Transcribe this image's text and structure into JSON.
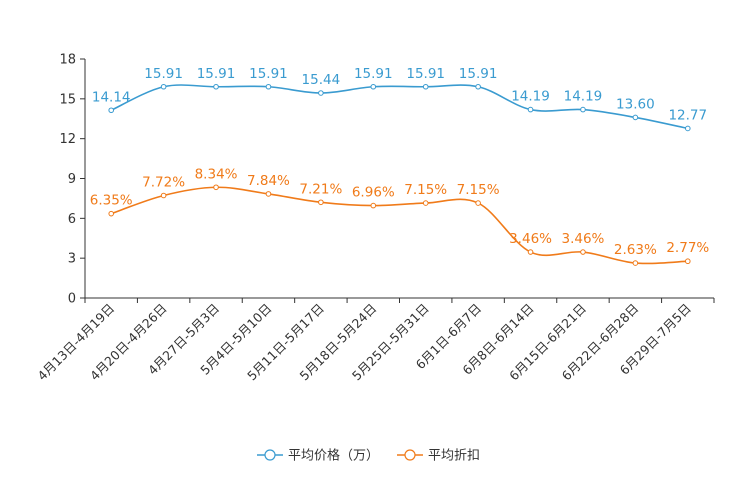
{
  "chart_data": {
    "type": "line",
    "categories": [
      "4月13日-4月19日",
      "4月20日-4月26日",
      "4月27日-5月3日",
      "5月4日-5月10日",
      "5月11日-5月17日",
      "5月18日-5月24日",
      "5月25日-5月31日",
      "6月1日-6月7日",
      "6月8日-6月14日",
      "6月15日-6月21日",
      "6月22日-6月28日",
      "6月29日-7月5日"
    ],
    "ylim": [
      0,
      18
    ],
    "yticks": [
      0,
      3,
      6,
      9,
      12,
      15,
      18
    ],
    "series": [
      {
        "name": "平均价格（万）",
        "color": "#3a9bd0",
        "values": [
          14.14,
          15.91,
          15.91,
          15.91,
          15.44,
          15.91,
          15.91,
          15.91,
          14.19,
          14.19,
          13.6,
          12.77
        ],
        "labels": [
          "14.14",
          "15.91",
          "15.91",
          "15.91",
          "15.44",
          "15.91",
          "15.91",
          "15.91",
          "14.19",
          "14.19",
          "13.60",
          "12.77"
        ]
      },
      {
        "name": "平均折扣",
        "color": "#f07b1a",
        "values": [
          6.35,
          7.72,
          8.34,
          7.84,
          7.21,
          6.96,
          7.15,
          7.15,
          3.46,
          3.46,
          2.63,
          2.77
        ],
        "labels": [
          "6.35%",
          "7.72%",
          "8.34%",
          "7.84%",
          "7.21%",
          "6.96%",
          "7.15%",
          "7.15%",
          "3.46%",
          "3.46%",
          "2.63%",
          "2.77%"
        ]
      }
    ],
    "legend_position": "bottom-center"
  }
}
